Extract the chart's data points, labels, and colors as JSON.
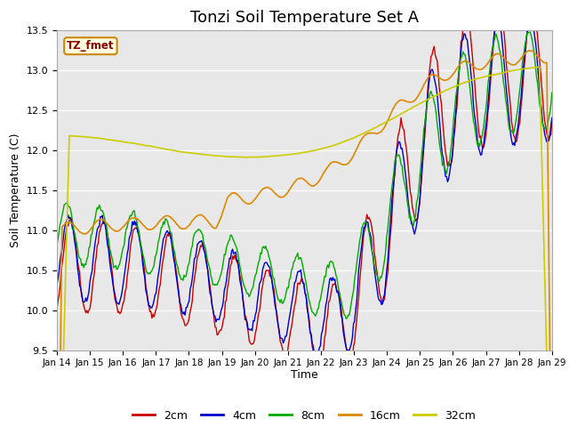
{
  "title": "Tonzi Soil Temperature Set A",
  "xlabel": "Time",
  "ylabel": "Soil Temperature (C)",
  "ylim": [
    9.5,
    13.5
  ],
  "xlim": [
    0,
    15
  ],
  "xtick_labels": [
    "Jan 14",
    "Jan 15",
    "Jan 16",
    "Jan 17",
    "Jan 18",
    "Jan 19",
    "Jan 20",
    "Jan 21",
    "Jan 22",
    "Jan 23",
    "Jan 24",
    "Jan 25",
    "Jan 26",
    "Jan 27",
    "Jan 28",
    "Jan 29"
  ],
  "ytick_labels": [
    "9.5",
    "10.0",
    "10.5",
    "11.0",
    "11.5",
    "12.0",
    "12.5",
    "13.0",
    "13.5"
  ],
  "ytick_values": [
    9.5,
    10.0,
    10.5,
    11.0,
    11.5,
    12.0,
    12.5,
    13.0,
    13.5
  ],
  "colors": {
    "2cm": "#cc0000",
    "4cm": "#0000cc",
    "8cm": "#00aa00",
    "16cm": "#dd8800",
    "32cm": "#cccc00"
  },
  "legend_label": "TZ_fmet",
  "background_color": "#e8e8e8",
  "title_fontsize": 13,
  "linewidth": 1.0
}
